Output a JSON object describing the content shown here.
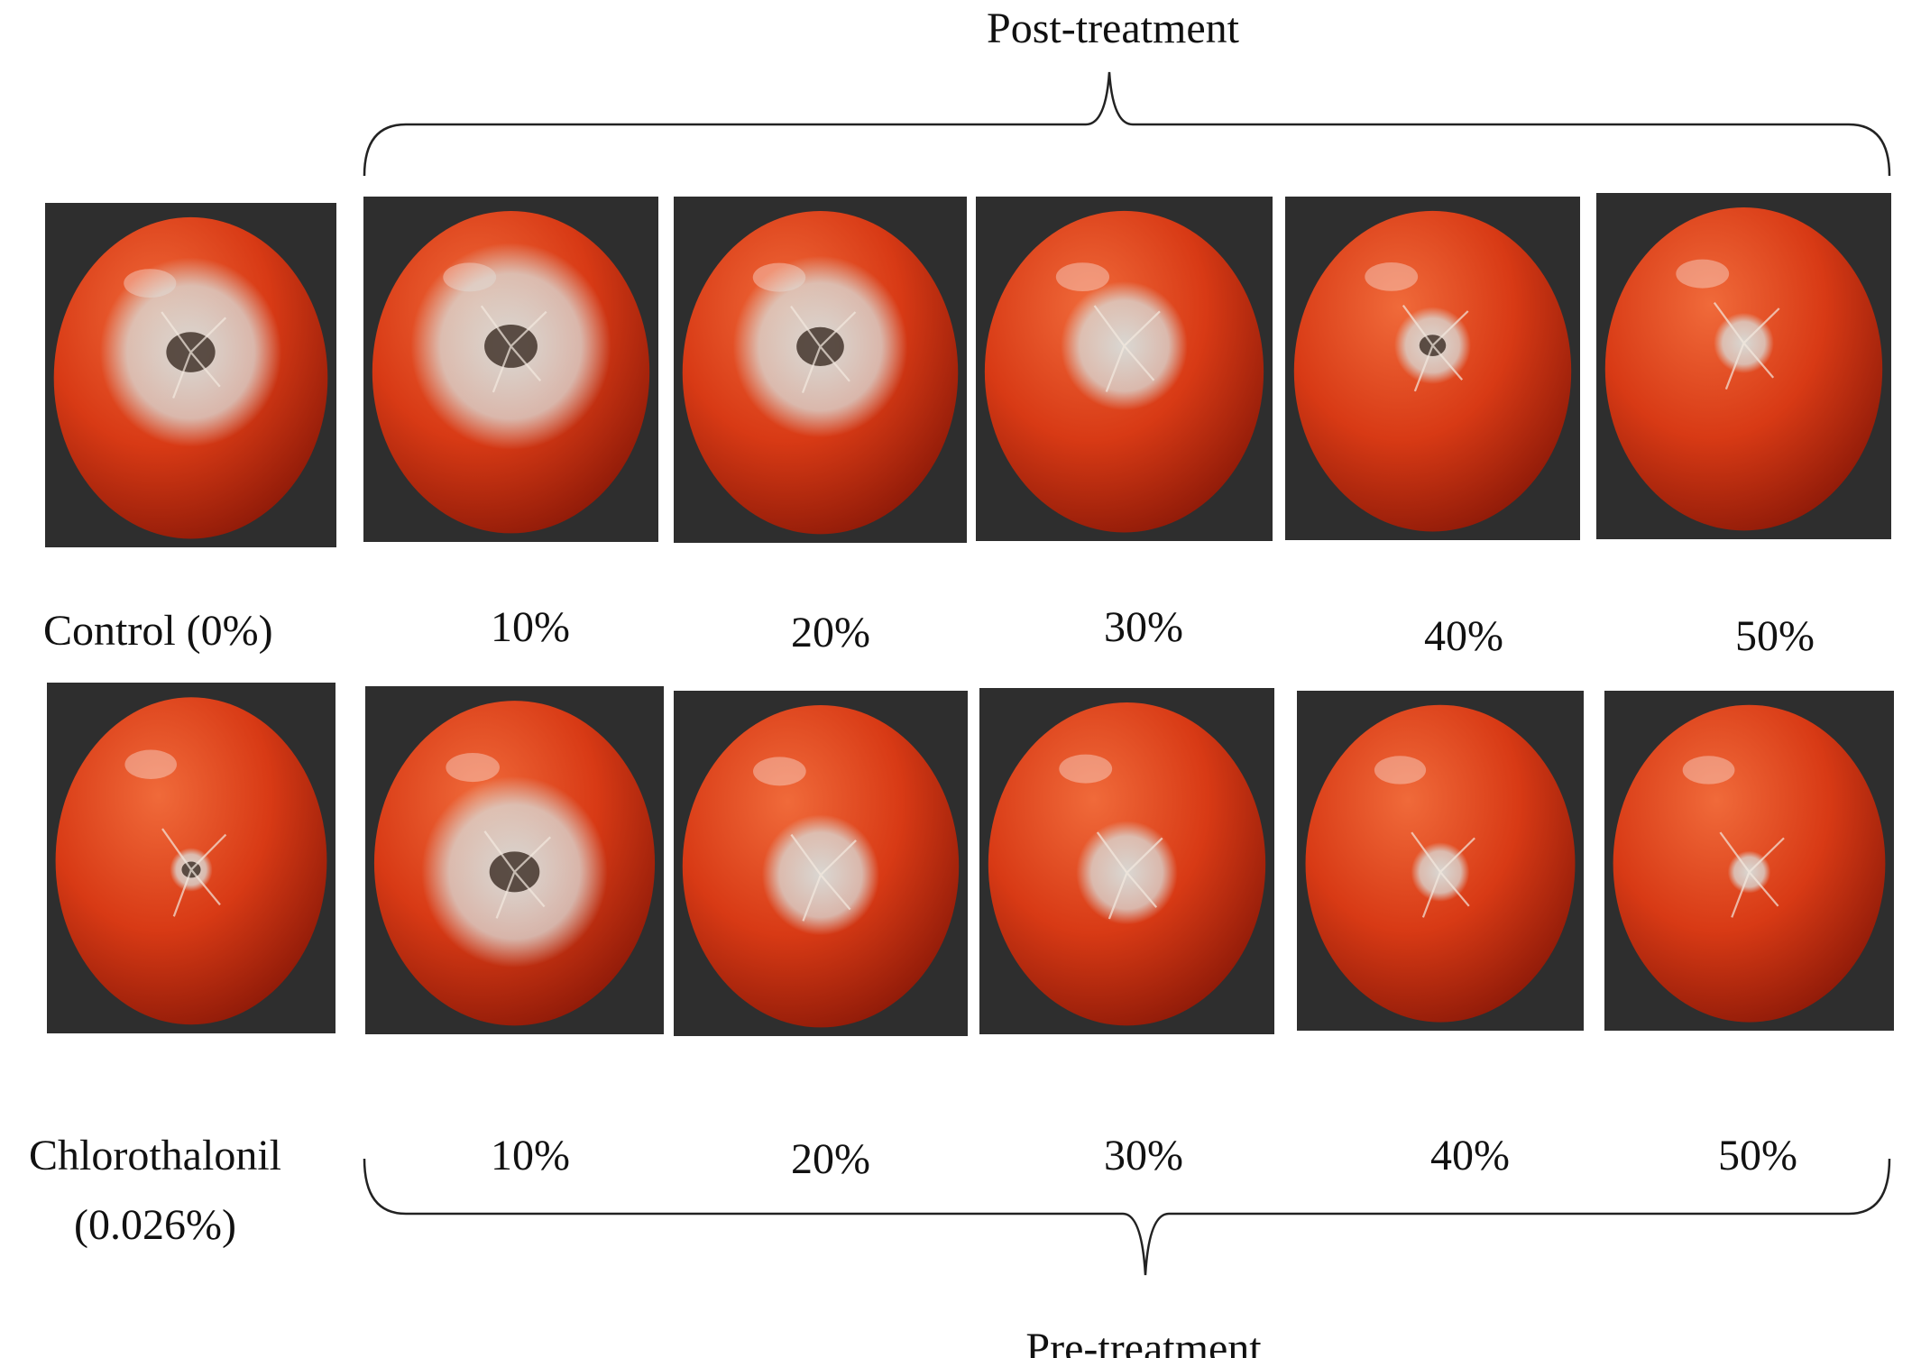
{
  "header": {
    "title": "Post-treatment"
  },
  "footer": {
    "title": "Pre-treatment"
  },
  "rows": {
    "top": {
      "row_label": "Control (0%)",
      "concentrations": [
        "10%",
        "20%",
        "30%",
        "40%",
        "50%"
      ]
    },
    "bottom": {
      "row_label_line1": "Chlorothalonil",
      "row_label_line2": "(0.026%)",
      "concentrations": [
        "10%",
        "20%",
        "30%",
        "40%",
        "50%"
      ]
    }
  },
  "colors": {
    "background": "#2e2e2e",
    "tomato": "#d83a15",
    "tomato_highlight": "#f06a3a",
    "tomato_shadow": "#8e1a08",
    "mold": "#d9dedb",
    "lesion_dark": "#3a2a22"
  },
  "panels": [
    {
      "id": "control",
      "row": "top",
      "mold_level": 0.9,
      "dark_core": true
    },
    {
      "id": "post-10",
      "row": "top",
      "mold_level": 1.0,
      "dark_core": true
    },
    {
      "id": "post-20",
      "row": "top",
      "mold_level": 0.85,
      "dark_core": true
    },
    {
      "id": "post-30",
      "row": "top",
      "mold_level": 0.55,
      "dark_core": false
    },
    {
      "id": "post-40",
      "row": "top",
      "mold_level": 0.25,
      "dark_core": true
    },
    {
      "id": "post-50",
      "row": "top",
      "mold_level": 0.15,
      "dark_core": false
    },
    {
      "id": "chlorothalonil",
      "row": "bottom",
      "mold_level": 0.05,
      "dark_core": true
    },
    {
      "id": "pre-10",
      "row": "bottom",
      "mold_level": 0.9,
      "dark_core": true
    },
    {
      "id": "pre-20",
      "row": "bottom",
      "mold_level": 0.5,
      "dark_core": false
    },
    {
      "id": "pre-30",
      "row": "bottom",
      "mold_level": 0.4,
      "dark_core": false
    },
    {
      "id": "pre-40",
      "row": "bottom",
      "mold_level": 0.15,
      "dark_core": false
    },
    {
      "id": "pre-50",
      "row": "bottom",
      "mold_level": 0.05,
      "dark_core": false
    }
  ]
}
